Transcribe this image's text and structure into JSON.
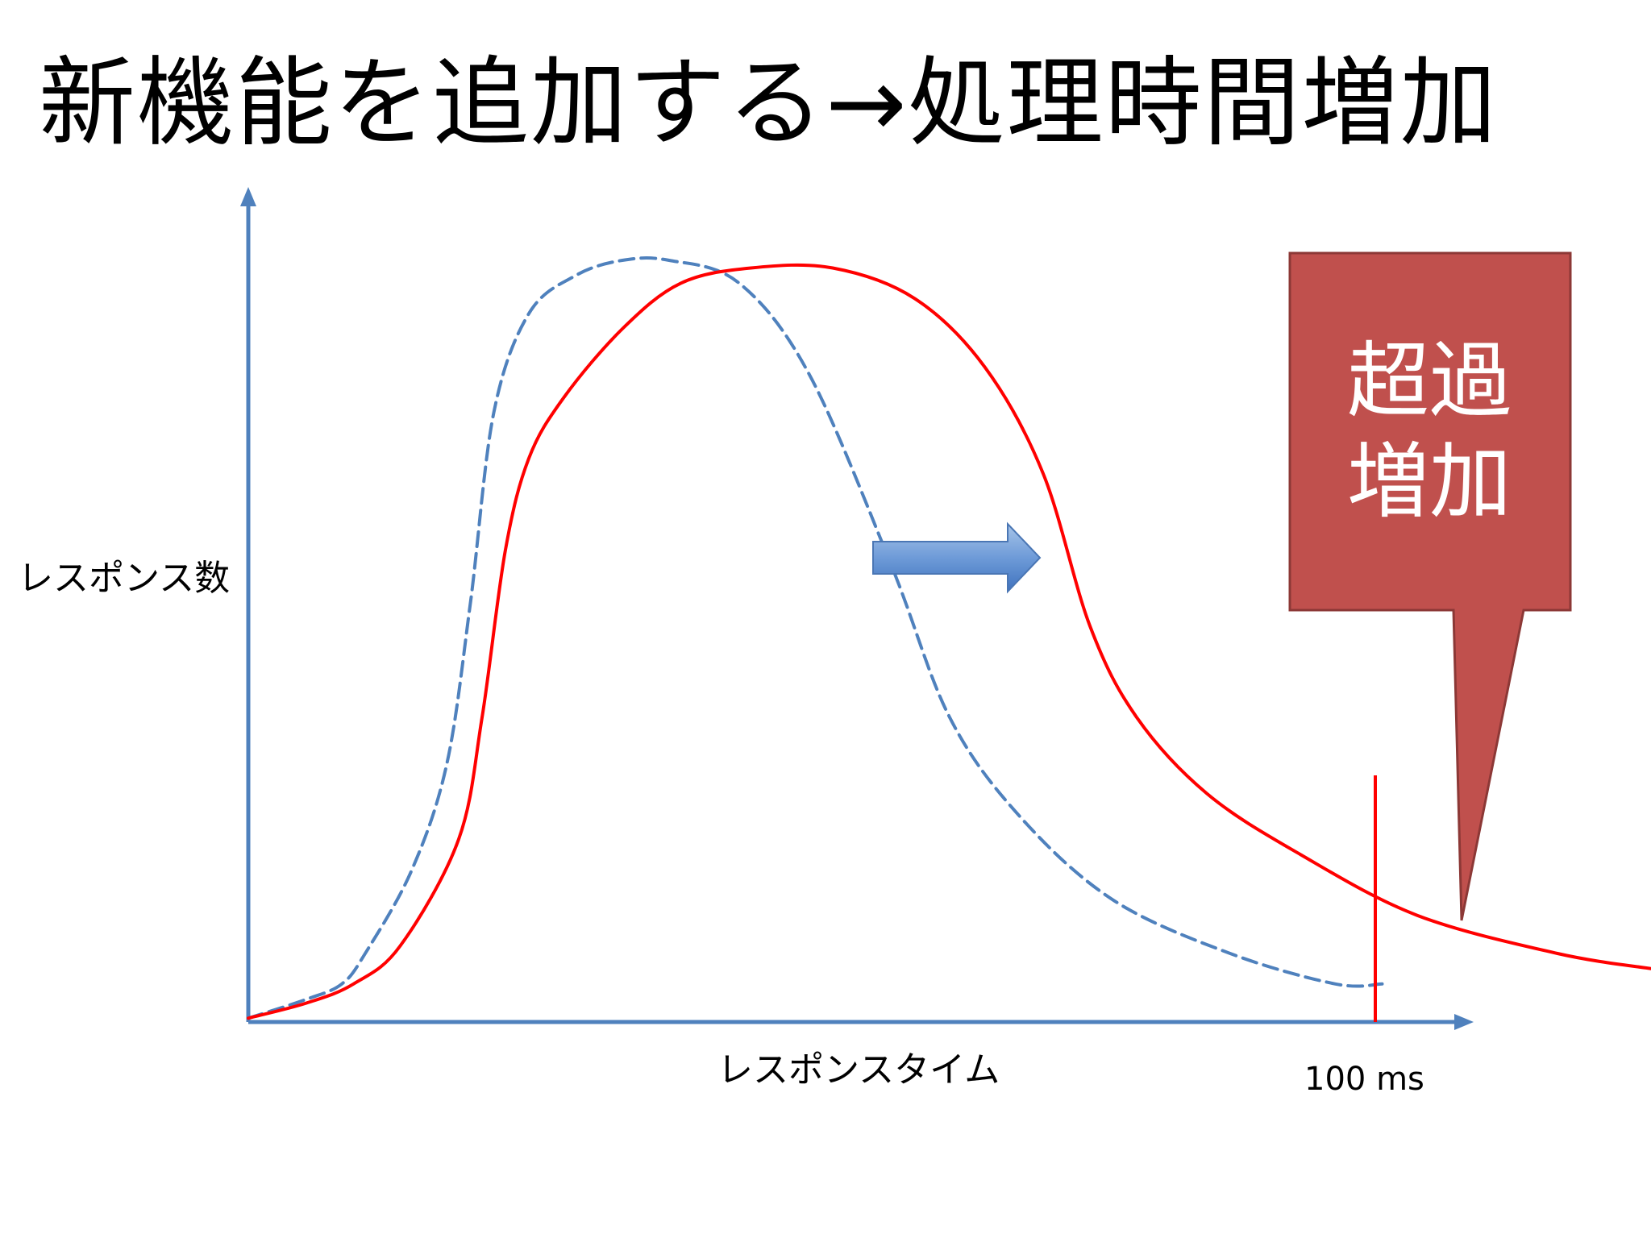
{
  "title": "新機能を追加する→処理時間増加",
  "chart_data": {
    "type": "line",
    "xlabel": "レスポンスタイム",
    "ylabel": "レスポンス数",
    "x_marker_label": "100 ms",
    "callout_lines": [
      "超過",
      "増加"
    ],
    "series": [
      {
        "style": "dashed",
        "color": "#4F81BD",
        "points": [
          [
            0,
            0.005
          ],
          [
            5,
            0.03
          ],
          [
            8,
            0.05
          ],
          [
            10,
            0.09
          ],
          [
            14,
            0.2
          ],
          [
            17,
            0.34
          ],
          [
            19,
            0.55
          ],
          [
            21,
            0.8
          ],
          [
            24,
            0.93
          ],
          [
            28,
            0.98
          ],
          [
            32,
            1.0
          ],
          [
            36,
            1.0
          ],
          [
            42,
            0.97
          ],
          [
            48,
            0.85
          ],
          [
            55,
            0.6
          ],
          [
            60,
            0.4
          ],
          [
            66,
            0.27
          ],
          [
            74,
            0.16
          ],
          [
            84,
            0.09
          ],
          [
            93,
            0.05
          ],
          [
            97,
            0.05
          ]
        ]
      },
      {
        "style": "solid",
        "color": "#FF0000",
        "points": [
          [
            0,
            0.005
          ],
          [
            5,
            0.025
          ],
          [
            9,
            0.05
          ],
          [
            13,
            0.1
          ],
          [
            18,
            0.24
          ],
          [
            20,
            0.4
          ],
          [
            22,
            0.62
          ],
          [
            24,
            0.74
          ],
          [
            27,
            0.82
          ],
          [
            32,
            0.91
          ],
          [
            37,
            0.97
          ],
          [
            43,
            0.99
          ],
          [
            50,
            0.99
          ],
          [
            57,
            0.95
          ],
          [
            63,
            0.86
          ],
          [
            68,
            0.72
          ],
          [
            72,
            0.52
          ],
          [
            76,
            0.4
          ],
          [
            82,
            0.3
          ],
          [
            90,
            0.22
          ],
          [
            100,
            0.14
          ],
          [
            112,
            0.09
          ],
          [
            120,
            0.07
          ]
        ]
      }
    ],
    "colors": {
      "axis": "#4F81BD",
      "marker_line": "#FF0000",
      "callout_fill": "#C0504D",
      "callout_text": "#FFFFFF",
      "shift_arrow": "#4F81BD"
    }
  }
}
